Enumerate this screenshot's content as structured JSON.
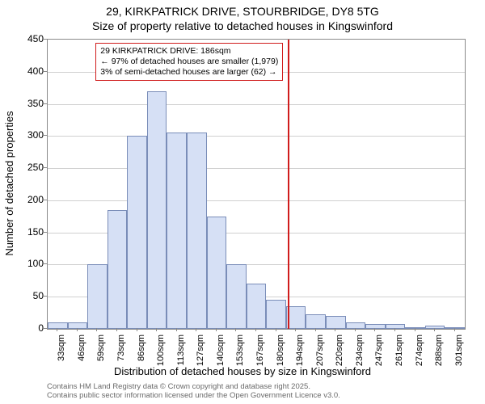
{
  "chart": {
    "type": "histogram",
    "title_line1": "29, KIRKPATRICK DRIVE, STOURBRIDGE, DY8 5TG",
    "title_line2": "Size of property relative to detached houses in Kingswinford",
    "title_fontsize": 14,
    "y_axis_label": "Number of detached properties",
    "x_axis_label": "Distribution of detached houses by size in Kingswinford",
    "axis_label_fontsize": 13,
    "background_color": "#ffffff",
    "plot_border_color": "#8a8a8a",
    "grid_color": "#d0d0d0",
    "bar_fill": "#d6e0f5",
    "bar_border": "#7a8db8",
    "ylim": [
      0,
      450
    ],
    "ytick_step": 50,
    "yticks": [
      0,
      50,
      100,
      150,
      200,
      250,
      300,
      350,
      400,
      450
    ],
    "xtick_labels": [
      "33sqm",
      "46sqm",
      "59sqm",
      "73sqm",
      "86sqm",
      "100sqm",
      "113sqm",
      "127sqm",
      "140sqm",
      "153sqm",
      "167sqm",
      "180sqm",
      "194sqm",
      "207sqm",
      "220sqm",
      "234sqm",
      "247sqm",
      "261sqm",
      "274sqm",
      "288sqm",
      "301sqm"
    ],
    "values": [
      10,
      10,
      100,
      185,
      300,
      370,
      305,
      305,
      175,
      100,
      70,
      45,
      35,
      23,
      20,
      10,
      8,
      8,
      2,
      5,
      3
    ],
    "bar_width": 1.0,
    "tick_fontsize": 12,
    "marker": {
      "position_index": 11.6,
      "color": "#d01c1c"
    },
    "annotation": {
      "line1": "29 KIRKPATRICK DRIVE: 186sqm",
      "line2": "← 97% of detached houses are smaller (1,979)",
      "line3": "3% of semi-detached houses are larger (62) →",
      "border_color": "#d01c1c",
      "background": "#ffffff",
      "fontsize": 10.5
    },
    "credits": {
      "line1": "Contains HM Land Registry data © Crown copyright and database right 2025.",
      "line2": "Contains public sector information licensed under the Open Government Licence v3.0.",
      "color": "#6a6a6a",
      "fontsize": 9.5
    }
  }
}
